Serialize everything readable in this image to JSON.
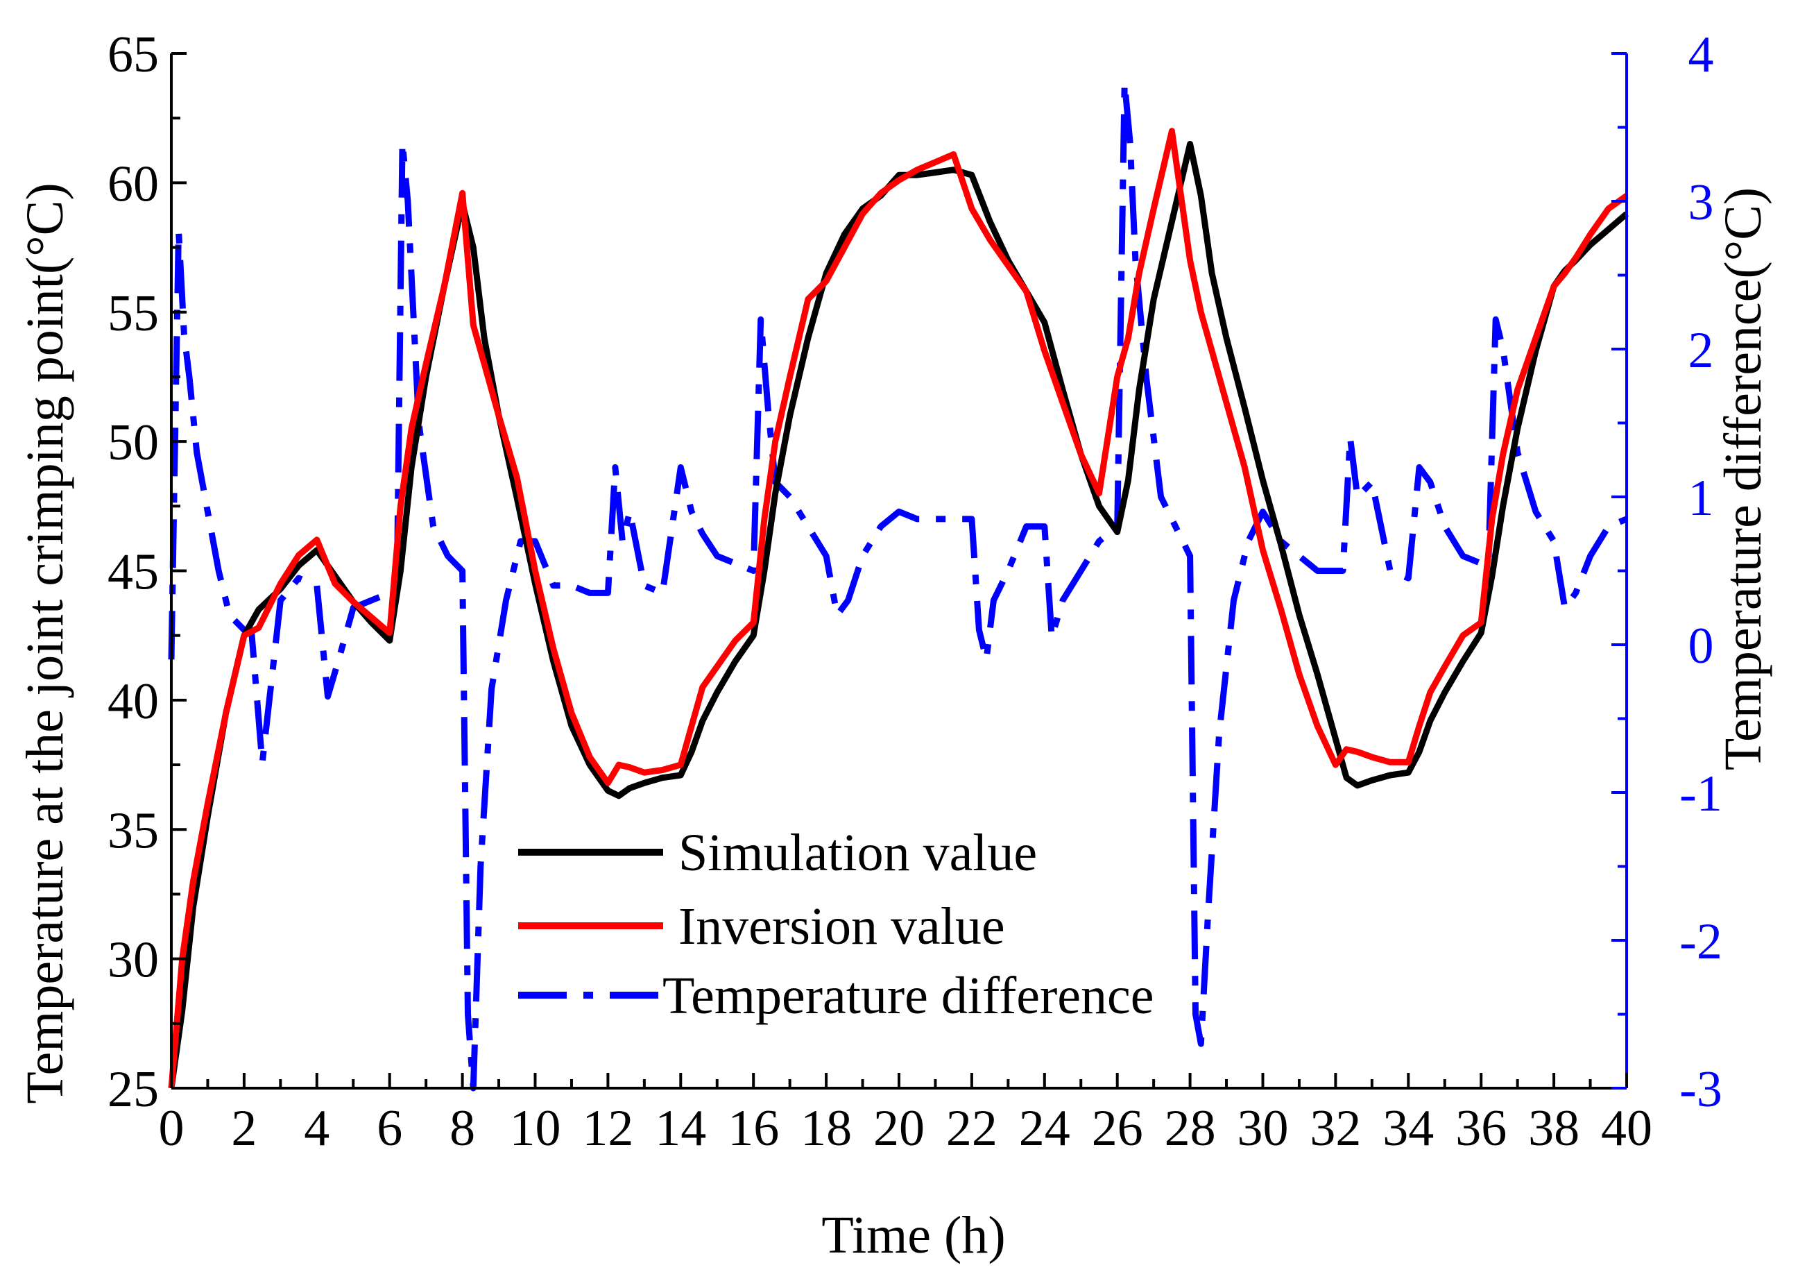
{
  "chart_data": {
    "type": "line",
    "title": "",
    "xlabel": "Time (h)",
    "ylabel": "Temperature at the joint crimping point(°C)",
    "y2label": "Temperature difference(°C)",
    "xlim": [
      0,
      40
    ],
    "ylim": [
      25,
      65
    ],
    "y2lim": [
      -3,
      4
    ],
    "xticks": [
      "0",
      "2",
      "4",
      "6",
      "8",
      "10",
      "12",
      "14",
      "16",
      "18",
      "20",
      "22",
      "24",
      "26",
      "28",
      "30",
      "32",
      "34",
      "36",
      "38",
      "40"
    ],
    "yticks": [
      "25",
      "30",
      "35",
      "40",
      "45",
      "50",
      "55",
      "60",
      "65"
    ],
    "y2ticks": [
      "-3",
      "-2",
      "-1",
      "0",
      "1",
      "2",
      "3",
      "4"
    ],
    "legend_position": "lower-center",
    "colors": {
      "simulation": "#000000",
      "inversion": "#ff0000",
      "difference": "#0000ff"
    },
    "series": [
      {
        "name": "Simulation value",
        "axis": "left",
        "x": [
          0,
          0.3,
          0.6,
          1,
          1.5,
          2,
          2.4,
          3,
          3.5,
          4,
          4.5,
          5,
          5.5,
          6,
          6.3,
          6.6,
          7,
          7.5,
          8,
          8.3,
          8.6,
          9,
          9.5,
          10,
          10.5,
          11,
          11.5,
          12,
          12.3,
          12.6,
          13,
          13.5,
          14,
          14.3,
          14.6,
          15,
          15.5,
          16,
          16.3,
          16.6,
          17,
          17.5,
          18,
          18.5,
          19,
          19.5,
          20,
          20.5,
          21,
          21.5,
          22,
          22.5,
          23,
          23.5,
          24,
          24.5,
          25,
          25.5,
          26,
          26.3,
          26.6,
          27,
          27.5,
          28,
          28.3,
          28.6,
          29,
          29.5,
          30,
          30.5,
          31,
          31.5,
          32,
          32.3,
          32.6,
          33,
          33.5,
          34,
          34.3,
          34.6,
          35,
          35.5,
          36,
          36.3,
          36.6,
          37,
          37.5,
          38,
          38.3,
          38.6,
          39,
          39.5,
          40
        ],
        "values": [
          25,
          28,
          32,
          35.5,
          39.5,
          42.5,
          43.5,
          44.3,
          45.2,
          45.8,
          44.8,
          43.8,
          43,
          42.3,
          45,
          49,
          52.5,
          56,
          59.2,
          57.5,
          54,
          51,
          47.8,
          44.5,
          41.5,
          39,
          37.5,
          36.5,
          36.3,
          36.6,
          36.8,
          37,
          37.1,
          38,
          39.2,
          40.3,
          41.5,
          42.5,
          45,
          48,
          51,
          54,
          56.5,
          58,
          59,
          59.5,
          60.3,
          60.3,
          60.4,
          60.5,
          60.3,
          58.5,
          57,
          55.8,
          54.6,
          52,
          49.5,
          47.5,
          46.5,
          48.5,
          52,
          55.5,
          58.5,
          61.5,
          59.5,
          56.5,
          54,
          51.3,
          48.5,
          46,
          43.3,
          41,
          38.5,
          37,
          36.7,
          36.9,
          37.1,
          37.2,
          38,
          39.2,
          40.3,
          41.5,
          42.6,
          44.8,
          47.5,
          50.5,
          53.5,
          56,
          56.6,
          57,
          57.6,
          58.2,
          58.8
        ]
      },
      {
        "name": "Inversion value",
        "axis": "left",
        "x": [
          0,
          0.3,
          0.6,
          1,
          1.5,
          2,
          2.4,
          3,
          3.5,
          4,
          4.5,
          5,
          5.5,
          6,
          6.3,
          6.6,
          7,
          7.5,
          8,
          8.3,
          8.6,
          9,
          9.5,
          10,
          10.5,
          11,
          11.5,
          12,
          12.3,
          12.6,
          13,
          13.5,
          14,
          14.3,
          14.6,
          15,
          15.5,
          16,
          16.3,
          16.6,
          17,
          17.5,
          18,
          18.5,
          19,
          19.5,
          20,
          20.5,
          21,
          21.5,
          22,
          22.5,
          23,
          23.5,
          24,
          24.5,
          25,
          25.5,
          26,
          26.3,
          26.6,
          27,
          27.5,
          28,
          28.3,
          28.6,
          29,
          29.5,
          30,
          30.5,
          31,
          31.5,
          32,
          32.3,
          32.6,
          33,
          33.5,
          34,
          34.3,
          34.6,
          35,
          35.5,
          36,
          36.3,
          36.6,
          37,
          37.5,
          38,
          38.3,
          38.6,
          39,
          39.5,
          40
        ],
        "values": [
          25,
          30,
          33,
          36,
          39.5,
          42.5,
          42.8,
          44.5,
          45.6,
          46.2,
          44.5,
          43.8,
          43.2,
          42.6,
          47.5,
          50.5,
          53,
          56,
          59.6,
          54.5,
          53,
          51,
          48.6,
          45,
          42,
          39.5,
          37.8,
          36.8,
          37.5,
          37.4,
          37.2,
          37.3,
          37.5,
          39,
          40.5,
          41.3,
          42.3,
          43,
          47,
          50,
          52.5,
          55.5,
          56.2,
          57.5,
          58.8,
          59.6,
          60.1,
          60.5,
          60.8,
          61.1,
          59,
          57.8,
          56.8,
          55.8,
          53.5,
          51.5,
          49.5,
          48,
          52.5,
          54,
          56.5,
          59,
          62,
          57,
          55,
          53.5,
          51.5,
          49,
          45.8,
          43.5,
          41,
          39,
          37.5,
          38.1,
          38,
          37.8,
          37.6,
          37.6,
          39,
          40.3,
          41.3,
          42.5,
          43,
          47,
          49.5,
          52,
          54,
          56,
          56.5,
          57.1,
          58,
          59,
          59.5
        ]
      },
      {
        "name": "Temperature difference",
        "axis": "right",
        "x": [
          0,
          0.2,
          0.35,
          0.5,
          0.7,
          1,
          1.3,
          1.6,
          2,
          2.2,
          2.5,
          3,
          3.5,
          4,
          4.3,
          4.6,
          5,
          5.5,
          6,
          6.2,
          6.35,
          6.5,
          6.8,
          7.2,
          7.6,
          8,
          8.15,
          8.3,
          8.5,
          8.8,
          9.2,
          9.6,
          10,
          10.5,
          11,
          11.5,
          12,
          12.2,
          12.4,
          12.6,
          13,
          13.5,
          14,
          14.3,
          14.6,
          15,
          15.5,
          16,
          16.2,
          16.4,
          16.6,
          17,
          17.5,
          18,
          18.3,
          18.6,
          19,
          19.5,
          20,
          20.5,
          21,
          21.5,
          22,
          22.2,
          22.4,
          22.6,
          23,
          23.5,
          24,
          24.2,
          24.5,
          25,
          25.5,
          26,
          26.2,
          26.35,
          26.5,
          26.8,
          27.2,
          27.6,
          28,
          28.15,
          28.3,
          28.5,
          28.8,
          29.2,
          29.6,
          30,
          30.5,
          31,
          31.5,
          32,
          32.2,
          32.4,
          32.6,
          33,
          33.5,
          34,
          34.3,
          34.6,
          35,
          35.5,
          36,
          36.2,
          36.4,
          36.6,
          37,
          37.5,
          38,
          38.3,
          38.6,
          39,
          39.5,
          40
        ],
        "values": [
          -0.1,
          2.8,
          2.1,
          1.8,
          1.3,
          0.9,
          0.5,
          0.2,
          0.1,
          0.1,
          -0.8,
          0.3,
          0.45,
          0.4,
          -0.35,
          -0.1,
          0.25,
          0.3,
          0.35,
          0.4,
          3.4,
          3,
          1.5,
          0.8,
          0.6,
          0.5,
          -2.5,
          -3,
          -1.5,
          -0.3,
          0.3,
          0.7,
          0.7,
          0.4,
          0.4,
          0.35,
          0.35,
          1.2,
          0.7,
          0.9,
          0.4,
          0.35,
          1.2,
          0.9,
          0.75,
          0.6,
          0.55,
          0.5,
          2.2,
          1.6,
          1.1,
          1,
          0.8,
          0.6,
          0.2,
          0.3,
          0.6,
          0.8,
          0.9,
          0.85,
          0.85,
          0.85,
          0.85,
          0.1,
          -0.1,
          0.3,
          0.5,
          0.8,
          0.8,
          0.05,
          0.3,
          0.5,
          0.7,
          0.8,
          3.8,
          3.4,
          2.6,
          1.8,
          1,
          0.8,
          0.6,
          -2.5,
          -2.7,
          -1.8,
          -0.6,
          0.3,
          0.7,
          0.9,
          0.7,
          0.6,
          0.5,
          0.5,
          0.5,
          1.4,
          1,
          1.1,
          0.5,
          0.45,
          1.2,
          1.1,
          0.8,
          0.6,
          0.55,
          0.55,
          2.2,
          2,
          1.3,
          0.9,
          0.7,
          0.25,
          0.35,
          0.6,
          0.8,
          0.85
        ]
      }
    ]
  }
}
